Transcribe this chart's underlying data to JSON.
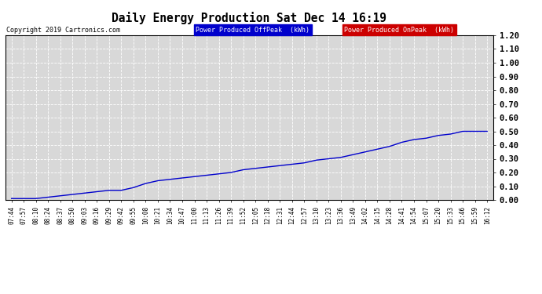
{
  "title": "Daily Energy Production Sat Dec 14 16:19",
  "copyright": "Copyright 2019 Cartronics.com",
  "legend_offpeak_label": "Power Produced OffPeak  (kWh)",
  "legend_onpeak_label": "Power Produced OnPeak  (kWh)",
  "legend_offpeak_bg": "#0000cc",
  "legend_onpeak_bg": "#cc0000",
  "line_color": "#0000cc",
  "background_color": "#ffffff",
  "plot_bg_color": "#d8d8d8",
  "grid_color": "#ffffff",
  "ylim": [
    0.0,
    1.2
  ],
  "yticks": [
    0.0,
    0.1,
    0.2,
    0.3,
    0.4,
    0.5,
    0.6,
    0.7,
    0.8,
    0.9,
    1.0,
    1.1,
    1.2
  ],
  "x_labels": [
    "07:44",
    "07:57",
    "08:10",
    "08:24",
    "08:37",
    "08:50",
    "09:03",
    "09:16",
    "09:29",
    "09:42",
    "09:55",
    "10:08",
    "10:21",
    "10:34",
    "10:47",
    "11:00",
    "11:13",
    "11:26",
    "11:39",
    "11:52",
    "12:05",
    "12:18",
    "12:31",
    "12:44",
    "12:57",
    "13:10",
    "13:23",
    "13:36",
    "13:49",
    "14:02",
    "14:15",
    "14:28",
    "14:41",
    "14:54",
    "15:07",
    "15:20",
    "15:33",
    "15:46",
    "15:59",
    "16:12"
  ],
  "y_values": [
    0.01,
    0.01,
    0.01,
    0.02,
    0.03,
    0.04,
    0.05,
    0.06,
    0.07,
    0.07,
    0.09,
    0.12,
    0.14,
    0.15,
    0.16,
    0.17,
    0.18,
    0.19,
    0.2,
    0.22,
    0.23,
    0.24,
    0.25,
    0.26,
    0.27,
    0.29,
    0.3,
    0.31,
    0.33,
    0.35,
    0.37,
    0.39,
    0.42,
    0.44,
    0.45,
    0.47,
    0.48,
    0.5,
    0.5,
    0.5
  ]
}
